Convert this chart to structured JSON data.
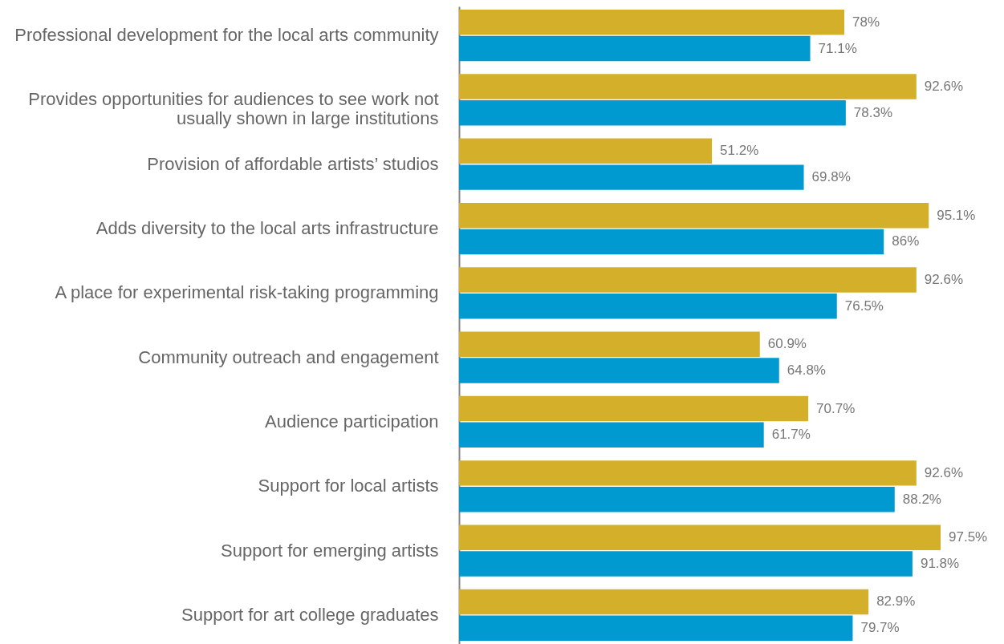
{
  "chart_data": {
    "type": "bar",
    "orientation": "horizontal",
    "grid": false,
    "categories": [
      "Professional development for the local arts community",
      "Provides opportunities for audiences to see work not usually shown in large institutions",
      "Provision of affordable artists’ studios",
      "Adds diversity to the local arts infrastructure",
      "A place for experimental risk-taking programming",
      "Community outreach and engagement",
      "Audience participation",
      "Support for local artists",
      "Support for emerging artists",
      "Support for art college graduates"
    ],
    "series": [
      {
        "color": "#d4b02a",
        "values": [
          78,
          92.6,
          51.2,
          95.1,
          92.6,
          60.9,
          70.7,
          92.6,
          97.5,
          82.9
        ],
        "value_labels": [
          "78%",
          "92.6%",
          "51.2%",
          "95.1%",
          "92.6%",
          "60.9%",
          "70.7%",
          "92.6%",
          "97.5%",
          "82.9%"
        ]
      },
      {
        "color": "#009ad0",
        "values": [
          71.1,
          78.3,
          69.8,
          86,
          76.5,
          64.8,
          61.7,
          88.2,
          91.8,
          79.7
        ],
        "value_labels": [
          "71.1%",
          "78.3%",
          "69.8%",
          "86%",
          "76.5%",
          "64.8%",
          "61.7%",
          "88.2%",
          "91.8%",
          "79.7%"
        ]
      }
    ]
  }
}
